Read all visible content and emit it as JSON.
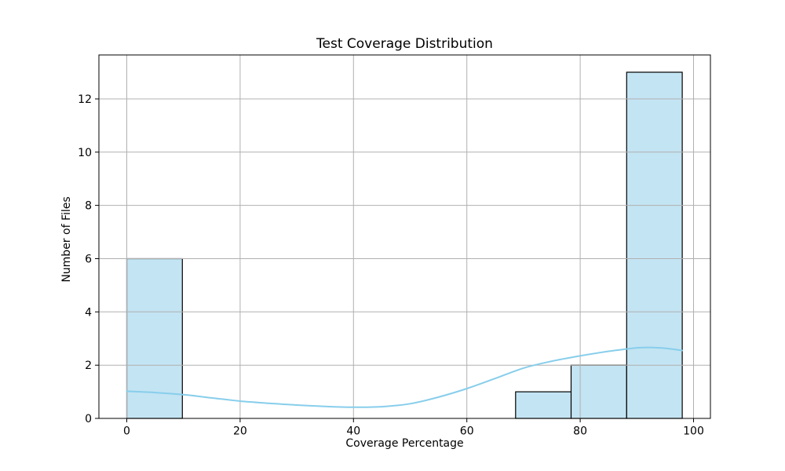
{
  "window": {
    "background": "#ffffff"
  },
  "chart_data": {
    "type": "histogram",
    "title": "Test Coverage Distribution",
    "xlabel": "Coverage Percentage",
    "ylabel": "Number of Files",
    "xlim": [
      -4.92,
      102.98
    ],
    "ylim": [
      0,
      13.65
    ],
    "xticks": [
      0,
      20,
      40,
      60,
      80,
      100
    ],
    "yticks": [
      0,
      2,
      4,
      6,
      8,
      10,
      12
    ],
    "grid": true,
    "grid_above_bars": true,
    "legend": false,
    "bins": {
      "edges": [
        0,
        9.8,
        19.6,
        29.4,
        39.2,
        49.0,
        58.8,
        68.6,
        78.4,
        88.2,
        98.0
      ],
      "counts": [
        6,
        0,
        0,
        0,
        0,
        0,
        0,
        1,
        2,
        13
      ]
    },
    "series": [
      {
        "name": "kde",
        "x": [
          0,
          5,
          10,
          15,
          20,
          25,
          30,
          35,
          40,
          45,
          50,
          55,
          60,
          65,
          70,
          75,
          80,
          85,
          88,
          90,
          93,
          96,
          98
        ],
        "y": [
          1.02,
          0.97,
          0.89,
          0.77,
          0.65,
          0.57,
          0.5,
          0.45,
          0.42,
          0.44,
          0.55,
          0.8,
          1.12,
          1.5,
          1.89,
          2.15,
          2.35,
          2.52,
          2.6,
          2.65,
          2.66,
          2.61,
          2.55
        ]
      }
    ],
    "colors": {
      "bar_fill": "#c3e4f3",
      "bar_edge": "#000000",
      "kde_line": "#87ceeb",
      "grid": "#b0b0b0",
      "spine": "#000000",
      "text": "#000000"
    }
  }
}
